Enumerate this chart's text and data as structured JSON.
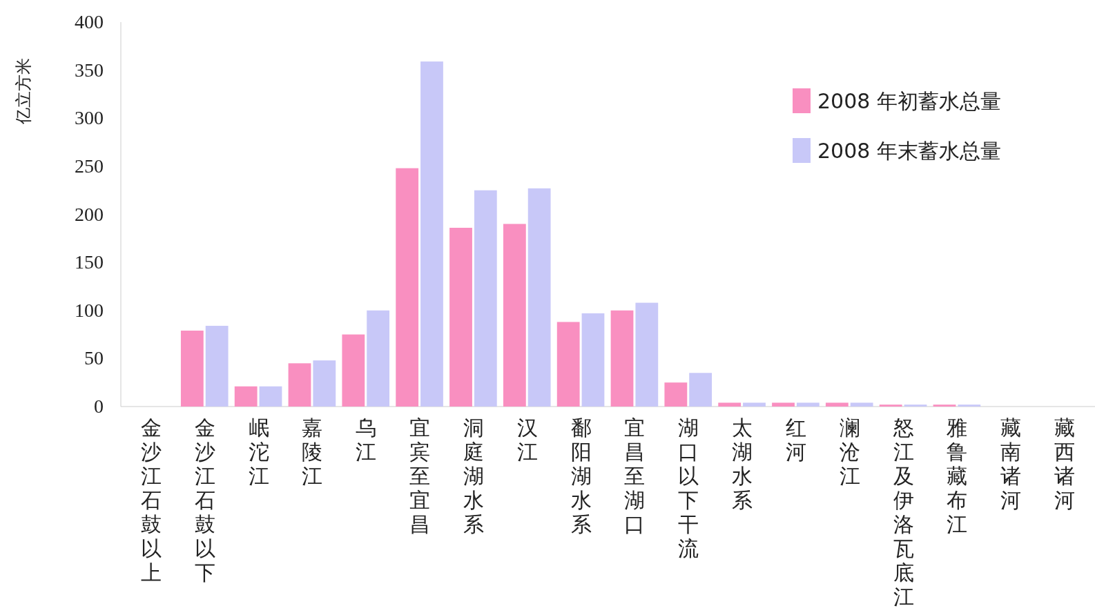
{
  "chart_data": {
    "type": "bar",
    "ylabel": "亿立方米",
    "categories": [
      "金沙江石鼓以上",
      "金沙江石鼓以下",
      "岷沱江",
      "嘉陵江",
      "乌江",
      "宜宾至宜昌",
      "洞庭湖水系",
      "汉江",
      "鄱阳湖水系",
      "宜昌至湖口",
      "湖口以下干流",
      "太湖水系",
      "红河",
      "澜沧江",
      "怒江及伊洛瓦底江",
      "雅鲁藏布江",
      "藏南诸河",
      "藏西诸河"
    ],
    "series": [
      {
        "name": "2008 年初蓄水总量",
        "color": "#f98fc0",
        "values": [
          0,
          79,
          21,
          45,
          75,
          248,
          186,
          190,
          88,
          100,
          25,
          4,
          4,
          4,
          2,
          2,
          0,
          0
        ]
      },
      {
        "name": "2008 年末蓄水总量",
        "color": "#c8c8f8",
        "values": [
          0,
          84,
          21,
          48,
          100,
          359,
          225,
          227,
          97,
          108,
          35,
          4,
          4,
          4,
          2,
          2,
          0,
          0
        ]
      }
    ],
    "ylim": [
      0,
      400
    ],
    "yticks": [
      0,
      50,
      100,
      150,
      200,
      250,
      300,
      350,
      400
    ],
    "legend": "top right"
  }
}
